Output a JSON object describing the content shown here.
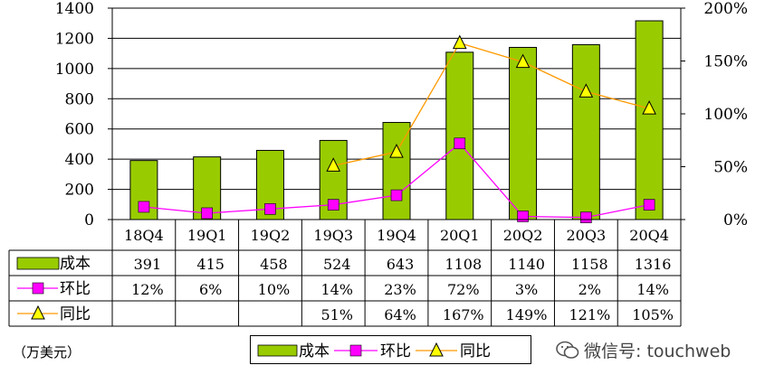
{
  "chart_data": {
    "type": "bar",
    "categories": [
      "18Q4",
      "19Q1",
      "19Q2",
      "19Q3",
      "19Q4",
      "20Q1",
      "20Q2",
      "20Q3",
      "20Q4"
    ],
    "y_left_ticks": [
      "0",
      "200",
      "400",
      "600",
      "800",
      "1000",
      "1200",
      "1400"
    ],
    "y_right_ticks": [
      "0%",
      "50%",
      "100%",
      "150%",
      "200%"
    ],
    "ylim_left": [
      0,
      1400
    ],
    "ylim_right": [
      0,
      200
    ],
    "series": [
      {
        "name": "成本",
        "type": "bar",
        "axis": "left",
        "color": "#99CC00",
        "values": [
          391,
          415,
          458,
          524,
          643,
          1108,
          1140,
          1158,
          1316
        ],
        "labels": [
          "391",
          "415",
          "458",
          "524",
          "643",
          "1108",
          "1140",
          "1158",
          "1316"
        ]
      },
      {
        "name": "环比",
        "type": "line",
        "axis": "right",
        "color": "#FF00FF",
        "marker": "square",
        "values": [
          12,
          6,
          10,
          14,
          23,
          72,
          3,
          2,
          14
        ],
        "labels": [
          "12%",
          "6%",
          "10%",
          "14%",
          "23%",
          "72%",
          "3%",
          "2%",
          "14%"
        ]
      },
      {
        "name": "同比",
        "type": "line",
        "axis": "right",
        "color": "#FF9900",
        "marker": "triangle",
        "marker_color": "#FFFF00",
        "values": [
          null,
          null,
          null,
          51,
          64,
          167,
          149,
          121,
          105
        ],
        "labels": [
          "",
          "",
          "",
          "51%",
          "64%",
          "167%",
          "149%",
          "121%",
          "105%"
        ]
      }
    ],
    "grid": true,
    "legend_position": "bottom"
  },
  "unit_label": "（万美元）",
  "watermark": {
    "text": "微信号: touchweb",
    "icon": "wechat-icon"
  }
}
